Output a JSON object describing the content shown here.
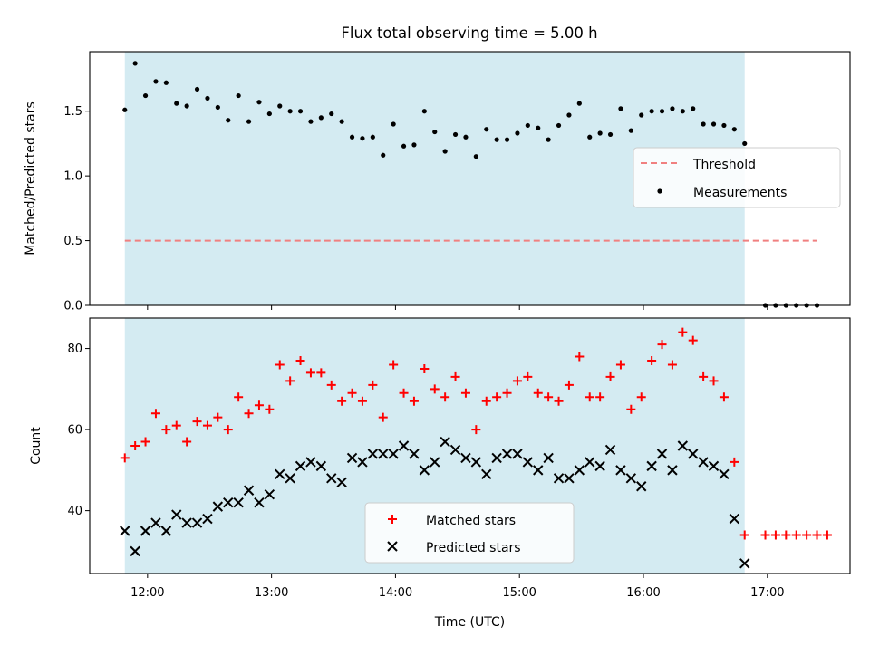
{
  "chart_data": {
    "title": "Flux total observing time = 5.00 h",
    "shaded_span": {
      "start": "11:49",
      "end": "16:49",
      "color": "#add8e6"
    },
    "x_axis": {
      "label": "Time (UTC)",
      "range": [
        "11:32",
        "17:40"
      ],
      "ticks": [
        "12:00",
        "13:00",
        "14:00",
        "15:00",
        "16:00",
        "17:00"
      ]
    },
    "top_panel": {
      "type": "scatter",
      "ylabel": "Matched/Predicted stars",
      "ylim": [
        0,
        1.96
      ],
      "yticks": [
        "0.0",
        "0.5",
        "1.0",
        "1.5"
      ],
      "legend": {
        "placement": "center-right",
        "entries": [
          "Threshold",
          "Measurements"
        ]
      },
      "threshold": {
        "name": "Threshold",
        "value": 0.5,
        "x_range": [
          "11:49",
          "17:24"
        ],
        "color": "#f08080",
        "style": "dashed"
      },
      "series": [
        {
          "name": "Measurements",
          "color": "#000000",
          "marker": "dot",
          "points": [
            [
              "11:49",
              1.51
            ],
            [
              "11:54",
              1.87
            ],
            [
              "11:59",
              1.62
            ],
            [
              "12:04",
              1.73
            ],
            [
              "12:09",
              1.72
            ],
            [
              "12:14",
              1.56
            ],
            [
              "12:19",
              1.54
            ],
            [
              "12:24",
              1.67
            ],
            [
              "12:29",
              1.6
            ],
            [
              "12:34",
              1.53
            ],
            [
              "12:39",
              1.43
            ],
            [
              "12:44",
              1.62
            ],
            [
              "12:49",
              1.42
            ],
            [
              "12:54",
              1.57
            ],
            [
              "12:59",
              1.48
            ],
            [
              "13:04",
              1.54
            ],
            [
              "13:09",
              1.5
            ],
            [
              "13:14",
              1.5
            ],
            [
              "13:19",
              1.42
            ],
            [
              "13:24",
              1.45
            ],
            [
              "13:29",
              1.48
            ],
            [
              "13:34",
              1.42
            ],
            [
              "13:39",
              1.3
            ],
            [
              "13:44",
              1.29
            ],
            [
              "13:49",
              1.3
            ],
            [
              "13:54",
              1.16
            ],
            [
              "13:59",
              1.4
            ],
            [
              "14:04",
              1.23
            ],
            [
              "14:09",
              1.24
            ],
            [
              "14:14",
              1.5
            ],
            [
              "14:19",
              1.34
            ],
            [
              "14:24",
              1.19
            ],
            [
              "14:29",
              1.32
            ],
            [
              "14:34",
              1.3
            ],
            [
              "14:39",
              1.15
            ],
            [
              "14:44",
              1.36
            ],
            [
              "14:49",
              1.28
            ],
            [
              "14:54",
              1.28
            ],
            [
              "14:59",
              1.33
            ],
            [
              "15:04",
              1.39
            ],
            [
              "15:09",
              1.37
            ],
            [
              "15:14",
              1.28
            ],
            [
              "15:19",
              1.39
            ],
            [
              "15:24",
              1.47
            ],
            [
              "15:29",
              1.56
            ],
            [
              "15:34",
              1.3
            ],
            [
              "15:39",
              1.33
            ],
            [
              "15:44",
              1.32
            ],
            [
              "15:49",
              1.52
            ],
            [
              "15:54",
              1.35
            ],
            [
              "15:59",
              1.47
            ],
            [
              "16:04",
              1.5
            ],
            [
              "16:09",
              1.5
            ],
            [
              "16:14",
              1.52
            ],
            [
              "16:19",
              1.5
            ],
            [
              "16:24",
              1.52
            ],
            [
              "16:29",
              1.4
            ],
            [
              "16:34",
              1.4
            ],
            [
              "16:39",
              1.39
            ],
            [
              "16:44",
              1.36
            ],
            [
              "16:49",
              1.25
            ],
            [
              "16:59",
              0.0
            ],
            [
              "17:04",
              0.0
            ],
            [
              "17:09",
              0.0
            ],
            [
              "17:14",
              0.0
            ],
            [
              "17:19",
              0.0
            ],
            [
              "17:24",
              0.0
            ]
          ]
        }
      ]
    },
    "bottom_panel": {
      "type": "scatter",
      "ylabel": "Count",
      "ylim": [
        24.5,
        87.5
      ],
      "yticks": [
        "40",
        "60",
        "80"
      ],
      "legend": {
        "placement": "lower-center",
        "entries": [
          "Matched stars",
          "Predicted stars"
        ]
      },
      "series": [
        {
          "name": "Matched stars",
          "color": "#ff0000",
          "marker": "plus",
          "points": [
            [
              "11:49",
              53
            ],
            [
              "11:54",
              56
            ],
            [
              "11:59",
              57
            ],
            [
              "12:04",
              64
            ],
            [
              "12:09",
              60
            ],
            [
              "12:14",
              61
            ],
            [
              "12:19",
              57
            ],
            [
              "12:24",
              62
            ],
            [
              "12:29",
              61
            ],
            [
              "12:34",
              63
            ],
            [
              "12:39",
              60
            ],
            [
              "12:44",
              68
            ],
            [
              "12:49",
              64
            ],
            [
              "12:54",
              66
            ],
            [
              "12:59",
              65
            ],
            [
              "13:04",
              76
            ],
            [
              "13:09",
              72
            ],
            [
              "13:14",
              77
            ],
            [
              "13:19",
              74
            ],
            [
              "13:24",
              74
            ],
            [
              "13:29",
              71
            ],
            [
              "13:34",
              67
            ],
            [
              "13:39",
              69
            ],
            [
              "13:44",
              67
            ],
            [
              "13:49",
              71
            ],
            [
              "13:54",
              63
            ],
            [
              "13:59",
              76
            ],
            [
              "14:04",
              69
            ],
            [
              "14:09",
              67
            ],
            [
              "14:14",
              75
            ],
            [
              "14:19",
              70
            ],
            [
              "14:24",
              68
            ],
            [
              "14:29",
              73
            ],
            [
              "14:34",
              69
            ],
            [
              "14:39",
              60
            ],
            [
              "14:44",
              67
            ],
            [
              "14:49",
              68
            ],
            [
              "14:54",
              69
            ],
            [
              "14:59",
              72
            ],
            [
              "15:04",
              73
            ],
            [
              "15:09",
              69
            ],
            [
              "15:14",
              68
            ],
            [
              "15:19",
              67
            ],
            [
              "15:24",
              71
            ],
            [
              "15:29",
              78
            ],
            [
              "15:34",
              68
            ],
            [
              "15:39",
              68
            ],
            [
              "15:44",
              73
            ],
            [
              "15:49",
              76
            ],
            [
              "15:54",
              65
            ],
            [
              "15:59",
              68
            ],
            [
              "16:04",
              77
            ],
            [
              "16:09",
              81
            ],
            [
              "16:14",
              76
            ],
            [
              "16:19",
              84
            ],
            [
              "16:24",
              82
            ],
            [
              "16:29",
              73
            ],
            [
              "16:34",
              72
            ],
            [
              "16:39",
              68
            ],
            [
              "16:44",
              52
            ],
            [
              "16:49",
              34
            ],
            [
              "16:59",
              34
            ],
            [
              "17:04",
              34
            ],
            [
              "17:09",
              34
            ],
            [
              "17:14",
              34
            ],
            [
              "17:19",
              34
            ],
            [
              "17:24",
              34
            ],
            [
              "17:29",
              34
            ]
          ]
        },
        {
          "name": "Predicted stars",
          "color": "#000000",
          "marker": "x",
          "points": [
            [
              "11:49",
              35
            ],
            [
              "11:54",
              30
            ],
            [
              "11:59",
              35
            ],
            [
              "12:04",
              37
            ],
            [
              "12:09",
              35
            ],
            [
              "12:14",
              39
            ],
            [
              "12:19",
              37
            ],
            [
              "12:24",
              37
            ],
            [
              "12:29",
              38
            ],
            [
              "12:34",
              41
            ],
            [
              "12:39",
              42
            ],
            [
              "12:44",
              42
            ],
            [
              "12:49",
              45
            ],
            [
              "12:54",
              42
            ],
            [
              "12:59",
              44
            ],
            [
              "13:04",
              49
            ],
            [
              "13:09",
              48
            ],
            [
              "13:14",
              51
            ],
            [
              "13:19",
              52
            ],
            [
              "13:24",
              51
            ],
            [
              "13:29",
              48
            ],
            [
              "13:34",
              47
            ],
            [
              "13:39",
              53
            ],
            [
              "13:44",
              52
            ],
            [
              "13:49",
              54
            ],
            [
              "13:54",
              54
            ],
            [
              "13:59",
              54
            ],
            [
              "14:04",
              56
            ],
            [
              "14:09",
              54
            ],
            [
              "14:14",
              50
            ],
            [
              "14:19",
              52
            ],
            [
              "14:24",
              57
            ],
            [
              "14:29",
              55
            ],
            [
              "14:34",
              53
            ],
            [
              "14:39",
              52
            ],
            [
              "14:44",
              49
            ],
            [
              "14:49",
              53
            ],
            [
              "14:54",
              54
            ],
            [
              "14:59",
              54
            ],
            [
              "15:04",
              52
            ],
            [
              "15:09",
              50
            ],
            [
              "15:14",
              53
            ],
            [
              "15:19",
              48
            ],
            [
              "15:24",
              48
            ],
            [
              "15:29",
              50
            ],
            [
              "15:34",
              52
            ],
            [
              "15:39",
              51
            ],
            [
              "15:44",
              55
            ],
            [
              "15:49",
              50
            ],
            [
              "15:54",
              48
            ],
            [
              "15:59",
              46
            ],
            [
              "16:04",
              51
            ],
            [
              "16:09",
              54
            ],
            [
              "16:14",
              50
            ],
            [
              "16:19",
              56
            ],
            [
              "16:24",
              54
            ],
            [
              "16:29",
              52
            ],
            [
              "16:34",
              51
            ],
            [
              "16:39",
              49
            ],
            [
              "16:44",
              38
            ],
            [
              "16:49",
              27
            ]
          ]
        }
      ]
    }
  }
}
